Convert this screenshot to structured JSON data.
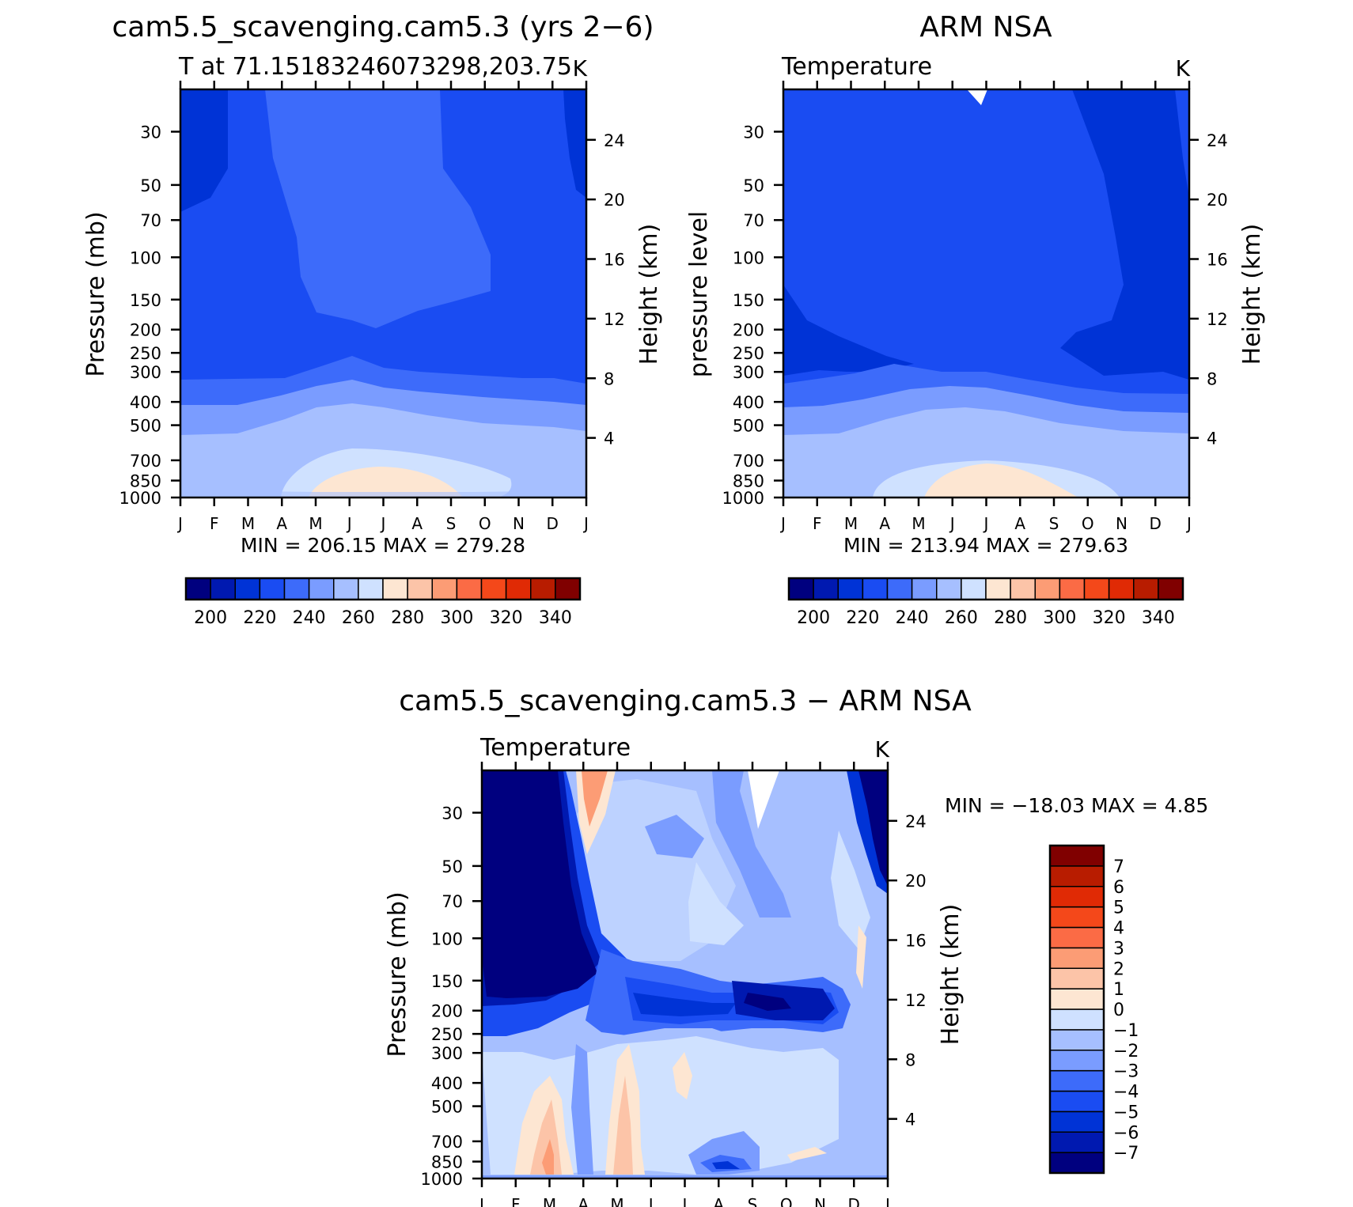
{
  "chart_data": [
    {
      "type": "heatmap",
      "id": "model",
      "title": "cam5.5_scavenging.cam5.3 (yrs 2−6)",
      "subtitle_left": "T at 71.15183246073298,203.75",
      "subtitle_right": "K",
      "ylabel": "Pressure (mb)",
      "ylabel_right": "Height (km)",
      "x_ticks": [
        "J",
        "F",
        "M",
        "A",
        "M",
        "J",
        "J",
        "A",
        "S",
        "O",
        "N",
        "D",
        "J"
      ],
      "y_ticks": [
        30,
        50,
        70,
        100,
        150,
        200,
        250,
        300,
        400,
        500,
        700,
        850,
        1000
      ],
      "y_ticks_right": [
        24,
        20,
        16,
        12,
        8,
        4
      ],
      "ylim_mb": [
        20,
        1000
      ],
      "stats": "MIN = 206.15 MAX = 279.28",
      "min": 206.15,
      "max": 279.28,
      "colorbar": {
        "orientation": "horizontal",
        "levels": [
          200,
          210,
          220,
          230,
          240,
          250,
          260,
          270,
          280,
          290,
          300,
          310,
          320,
          330,
          340
        ],
        "labels": [
          "200",
          "220",
          "240",
          "260",
          "280",
          "300",
          "320",
          "340"
        ],
        "colors": [
          "#00007f",
          "#0019b0",
          "#0033d6",
          "#1a4cf2",
          "#3d6bfa",
          "#7a9cff",
          "#a6bfff",
          "#cfe1ff",
          "#fde6d2",
          "#fcc4a8",
          "#fc9c75",
          "#fb6b45",
          "#f4481a",
          "#e02a05",
          "#b81c00",
          "#800000"
        ]
      },
      "months_profile": [
        {
          "month": "J",
          "values": [
            207,
            212,
            222,
            232,
            242,
            252,
            260
          ]
        },
        {
          "month": "F",
          "values": [
            208,
            213,
            223,
            234,
            244,
            254,
            262
          ]
        },
        {
          "month": "M",
          "values": [
            212,
            215,
            225,
            236,
            248,
            258,
            266
          ]
        },
        {
          "month": "A",
          "values": [
            216,
            218,
            228,
            240,
            252,
            262,
            270
          ]
        },
        {
          "month": "M",
          "values": [
            220,
            220,
            230,
            245,
            258,
            268,
            276
          ]
        },
        {
          "month": "J",
          "values": [
            222,
            222,
            232,
            248,
            262,
            272,
            279
          ]
        },
        {
          "month": "J",
          "values": [
            222,
            221,
            232,
            249,
            263,
            273,
            279
          ]
        },
        {
          "month": "A",
          "values": [
            220,
            220,
            231,
            247,
            261,
            271,
            277
          ]
        },
        {
          "month": "S",
          "values": [
            216,
            218,
            229,
            243,
            256,
            266,
            272
          ]
        },
        {
          "month": "O",
          "values": [
            212,
            216,
            226,
            238,
            250,
            260,
            266
          ]
        },
        {
          "month": "N",
          "values": [
            210,
            214,
            224,
            235,
            246,
            256,
            263
          ]
        },
        {
          "month": "D",
          "values": [
            208,
            213,
            223,
            233,
            243,
            253,
            261
          ]
        }
      ]
    },
    {
      "type": "heatmap",
      "id": "obs",
      "title": "ARM NSA",
      "subtitle_left": "Temperature",
      "subtitle_right": "K",
      "ylabel": "pressure level",
      "ylabel_right": "Height (km)",
      "x_ticks": [
        "J",
        "F",
        "M",
        "A",
        "M",
        "J",
        "J",
        "A",
        "S",
        "O",
        "N",
        "D",
        "J"
      ],
      "y_ticks": [
        30,
        50,
        70,
        100,
        150,
        200,
        250,
        300,
        400,
        500,
        700,
        850,
        1000
      ],
      "y_ticks_right": [
        24,
        20,
        16,
        12,
        8,
        4
      ],
      "ylim_mb": [
        20,
        1000
      ],
      "stats": "MIN = 213.94 MAX = 279.63",
      "min": 213.94,
      "max": 279.63,
      "colorbar": {
        "orientation": "horizontal",
        "levels": [
          200,
          210,
          220,
          230,
          240,
          250,
          260,
          270,
          280,
          290,
          300,
          310,
          320,
          330,
          340
        ],
        "labels": [
          "200",
          "220",
          "240",
          "260",
          "280",
          "300",
          "320",
          "340"
        ],
        "colors": [
          "#00007f",
          "#0019b0",
          "#0033d6",
          "#1a4cf2",
          "#3d6bfa",
          "#7a9cff",
          "#a6bfff",
          "#cfe1ff",
          "#fde6d2",
          "#fcc4a8",
          "#fc9c75",
          "#fb6b45",
          "#f4481a",
          "#e02a05",
          "#b81c00",
          "#800000"
        ]
      }
    },
    {
      "type": "heatmap",
      "id": "diff",
      "title": "cam5.5_scavenging.cam5.3 − ARM NSA",
      "subtitle_left": "Temperature",
      "subtitle_right": "K",
      "ylabel": "Pressure (mb)",
      "ylabel_right": "Height (km)",
      "x_ticks": [
        "J",
        "F",
        "M",
        "A",
        "M",
        "J",
        "J",
        "A",
        "S",
        "O",
        "N",
        "D",
        "J"
      ],
      "y_ticks": [
        30,
        50,
        70,
        100,
        150,
        200,
        250,
        300,
        400,
        500,
        700,
        850,
        1000
      ],
      "y_ticks_right": [
        24,
        20,
        16,
        12,
        8,
        4
      ],
      "ylim_mb": [
        20,
        1000
      ],
      "stats": "MIN = −18.03 MAX =    4.85",
      "min": -18.03,
      "max": 4.85,
      "colorbar": {
        "orientation": "vertical",
        "levels": [
          -7,
          -6,
          -5,
          -4,
          -3,
          -2,
          -1,
          0,
          1,
          2,
          3,
          4,
          5,
          6,
          7
        ],
        "labels": [
          "−7",
          "−6",
          "−5",
          "−4",
          "−3",
          "−2",
          "−1",
          "0",
          "1",
          "2",
          "3",
          "4",
          "5",
          "6",
          "7"
        ],
        "colors": [
          "#00007f",
          "#0019b0",
          "#0033d6",
          "#1a4cf2",
          "#3d6bfa",
          "#7a9cff",
          "#a6bfff",
          "#cfe1ff",
          "#fde6d2",
          "#fcc4a8",
          "#fc9c75",
          "#fb6b45",
          "#f4481a",
          "#e02a05",
          "#b81c00",
          "#800000"
        ]
      }
    }
  ]
}
